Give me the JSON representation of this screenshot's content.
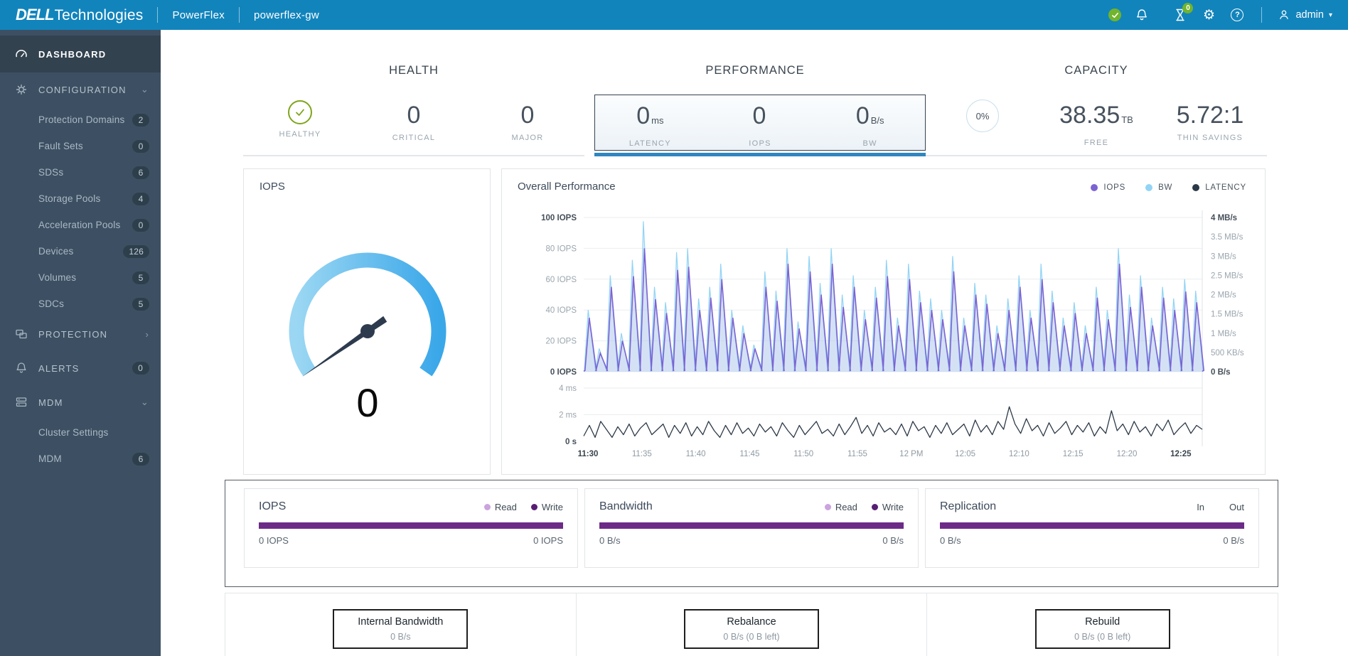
{
  "topbar": {
    "brand_bold": "DELL",
    "brand_light": "Technologies",
    "product": "PowerFlex",
    "instance": "powerflex-gw",
    "jobs_count": "0",
    "user_name": "admin"
  },
  "sidebar": {
    "dashboard": {
      "label": "DASHBOARD"
    },
    "configuration": {
      "label": "CONFIGURATION",
      "children": [
        {
          "label": "Protection Domains",
          "count": "2"
        },
        {
          "label": "Fault Sets",
          "count": "0"
        },
        {
          "label": "SDSs",
          "count": "6"
        },
        {
          "label": "Storage Pools",
          "count": "4"
        },
        {
          "label": "Acceleration Pools",
          "count": "0"
        },
        {
          "label": "Devices",
          "count": "126"
        },
        {
          "label": "Volumes",
          "count": "5"
        },
        {
          "label": "SDCs",
          "count": "5"
        }
      ]
    },
    "protection": {
      "label": "PROTECTION"
    },
    "alerts": {
      "label": "ALERTS",
      "count": "0"
    },
    "mdm": {
      "label": "MDM",
      "children": [
        {
          "label": "Cluster Settings"
        },
        {
          "label": "MDM",
          "count": "6"
        }
      ]
    }
  },
  "summary": {
    "health": {
      "title": "HEALTH",
      "metrics": [
        {
          "label": "HEALTHY"
        },
        {
          "value": "0",
          "label": "CRITICAL"
        },
        {
          "value": "0",
          "label": "MAJOR"
        }
      ]
    },
    "performance": {
      "title": "PERFORMANCE",
      "metrics": [
        {
          "value": "0",
          "unit": "ms",
          "label": "LATENCY"
        },
        {
          "value": "0",
          "unit": "",
          "label": "IOPS"
        },
        {
          "value": "0",
          "unit": "B/s",
          "label": "BW"
        }
      ]
    },
    "capacity": {
      "title": "CAPACITY",
      "percent": "0%",
      "metrics": [
        {
          "value": "38.35",
          "unit": "TB",
          "label": "FREE"
        },
        {
          "value": "5.72:1",
          "unit": "",
          "label": "THIN SAVINGS"
        }
      ]
    }
  },
  "gauge": {
    "title": "IOPS",
    "value": "0"
  },
  "chart_data": {
    "type": "line",
    "title": "Overall Performance",
    "legend": [
      {
        "label": "IOPS",
        "color": "#7c63d2"
      },
      {
        "label": "BW",
        "color": "#92d4f5"
      },
      {
        "label": "LATENCY",
        "color": "#2c3947"
      }
    ],
    "x_labels": [
      "11:30",
      "11:35",
      "11:40",
      "11:45",
      "11:50",
      "11:55",
      "12 PM",
      "12:05",
      "12:10",
      "12:15",
      "12:20",
      "12:25"
    ],
    "left_axis": {
      "labels": [
        "100 IOPS",
        "80 IOPS",
        "60 IOPS",
        "40 IOPS",
        "20 IOPS",
        "0 IOPS"
      ],
      "range": [
        0,
        100
      ]
    },
    "latency_axis": {
      "labels": [
        "4 ms",
        "2 ms",
        "0 s"
      ],
      "range_ms": [
        0,
        4
      ]
    },
    "right_axis": {
      "labels": [
        "4 MB/s",
        "3.5 MB/s",
        "3 MB/s",
        "2.5 MB/s",
        "2 MB/s",
        "1.5 MB/s",
        "1 MB/s",
        "500 KB/s",
        "0 B/s"
      ],
      "range_mbps": [
        0,
        4
      ]
    },
    "series": [
      {
        "name": "IOPS",
        "unit": "IOPS",
        "spike_peaks": [
          35,
          12,
          55,
          20,
          62,
          80,
          47,
          38,
          66,
          68,
          40,
          48,
          60,
          35,
          25,
          15,
          55,
          46,
          70,
          28,
          65,
          50,
          70,
          42,
          55,
          34,
          48,
          62,
          30,
          60,
          45,
          40,
          34,
          65,
          30,
          50,
          44,
          25,
          40,
          55,
          35,
          60,
          45,
          30,
          38,
          25,
          48,
          34,
          70,
          42,
          55,
          30,
          48,
          40,
          52,
          45
        ]
      },
      {
        "name": "BW",
        "unit": "MB/s",
        "spike_peaks_mbps": [
          1.6,
          0.6,
          2.5,
          1.0,
          2.9,
          3.9,
          2.2,
          1.8,
          3.1,
          3.2,
          1.9,
          2.2,
          2.8,
          1.6,
          1.2,
          0.7,
          2.6,
          2.1,
          3.2,
          1.3,
          3.0,
          2.3,
          3.2,
          2.0,
          2.5,
          1.6,
          2.2,
          2.9,
          1.4,
          2.8,
          2.1,
          1.9,
          1.6,
          3.0,
          1.4,
          2.3,
          2.0,
          1.2,
          1.9,
          2.5,
          1.6,
          2.8,
          2.1,
          1.4,
          1.8,
          1.2,
          2.2,
          1.6,
          3.2,
          2.0,
          2.5,
          1.4,
          2.2,
          1.9,
          2.4,
          2.1
        ]
      },
      {
        "name": "LATENCY",
        "unit": "ms",
        "values": [
          0.4,
          1.2,
          0.3,
          1.5,
          0.9,
          0.3,
          1.1,
          0.5,
          1.3,
          0.4,
          1.0,
          1.4,
          0.5,
          0.9,
          1.3,
          0.3,
          1.2,
          0.6,
          1.4,
          0.4,
          1.1,
          0.5,
          1.5,
          0.8,
          0.3,
          1.2,
          0.5,
          1.4,
          0.6,
          1.0,
          0.4,
          1.3,
          0.7,
          1.1,
          0.4,
          1.4,
          0.8,
          0.3,
          1.2,
          0.5,
          1.0,
          1.5,
          0.6,
          0.9,
          0.4,
          1.3,
          0.5,
          1.1,
          1.8,
          0.6,
          1.2,
          0.4,
          1.4,
          0.7,
          1.0,
          0.5,
          1.3,
          0.4,
          1.5,
          0.8,
          1.1,
          0.3,
          1.2,
          0.6,
          1.4,
          0.5,
          0.9,
          1.3,
          0.4,
          1.6,
          0.7,
          1.2,
          0.5,
          1.5,
          0.9,
          2.6,
          1.3,
          0.6,
          1.7,
          0.8,
          1.2,
          0.4,
          1.4,
          0.6,
          1.0,
          1.5,
          0.5,
          1.2,
          0.7,
          1.4,
          0.4,
          1.1,
          0.6,
          2.3,
          0.8,
          1.3,
          0.5,
          1.5,
          0.7,
          1.1,
          0.4,
          1.3,
          0.8,
          1.6,
          0.5,
          1.0,
          1.4,
          0.6,
          1.2,
          0.9
        ]
      }
    ]
  },
  "breakdown": {
    "cards": [
      {
        "title": "IOPS",
        "legend": [
          {
            "label": "Read"
          },
          {
            "label": "Write"
          }
        ],
        "left": "0 IOPS",
        "right": "0 IOPS"
      },
      {
        "title": "Bandwidth",
        "legend": [
          {
            "label": "Read"
          },
          {
            "label": "Write"
          }
        ],
        "left": "0 B/s",
        "right": "0 B/s"
      },
      {
        "title": "Replication",
        "legend": [
          {
            "label": "In"
          },
          {
            "label": "Out"
          }
        ],
        "left": "0 B/s",
        "right": "0 B/s"
      }
    ]
  },
  "footer": {
    "items": [
      {
        "title": "Internal Bandwidth",
        "value": "0 B/s"
      },
      {
        "title": "Rebalance",
        "value": "0 B/s (0 B left)"
      },
      {
        "title": "Rebuild",
        "value": "0 B/s (0 B left)"
      }
    ]
  },
  "colors": {
    "topbar_blue": "#1284bc",
    "sidebar_bg": "#3d5063",
    "sidebar_active_bg": "#33424f",
    "accent_blue": "#2f86c0",
    "health_green": "#7fa51c",
    "bar_purple": "#6c2b87",
    "read_dot": "#cba3de",
    "write_dot": "#571f73",
    "iops_line": "#7c63d2",
    "bw_line": "#92d4f5",
    "latency_line": "#2c3947",
    "gauge_start": "#9bd7f3",
    "gauge_end": "#3aa7e9",
    "needle": "#2e3b4e"
  }
}
